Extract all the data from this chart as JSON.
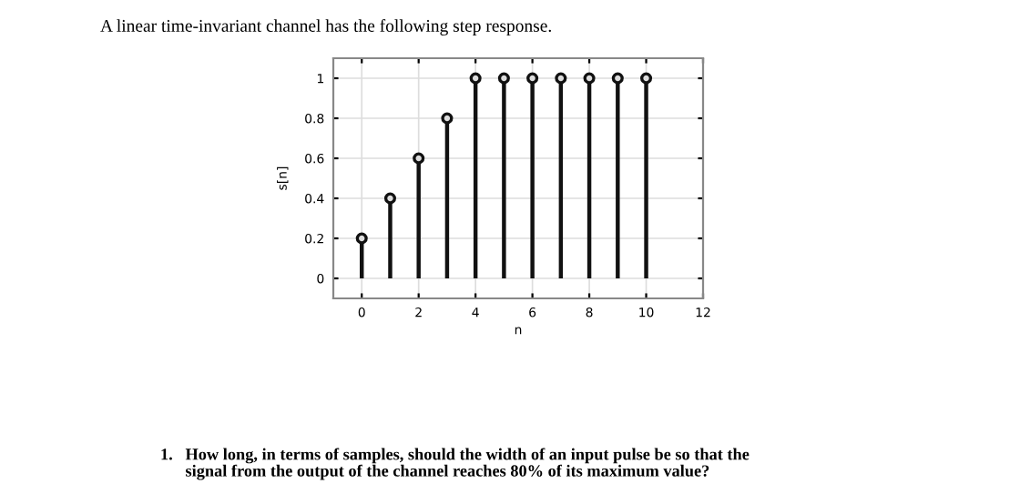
{
  "chart_data": {
    "type": "lollipop",
    "title": "A linear time-invariant channel has the following step response.",
    "x": [
      0,
      1,
      2,
      3,
      4,
      5,
      6,
      7,
      8,
      9,
      10
    ],
    "values": [
      0.2,
      0.4,
      0.6,
      0.8,
      1,
      1,
      1,
      1,
      1,
      1,
      1
    ],
    "color": "#111111",
    "marker": "circle",
    "xlabel": "n",
    "ylabel": "s[n]",
    "xlim": [
      -1,
      12
    ],
    "xticks": [
      0,
      2,
      4,
      6,
      8,
      10,
      12
    ],
    "ylim": [
      -0.1,
      1.1
    ],
    "yticks": [
      0,
      0.2,
      0.4,
      0.6,
      0.8,
      1
    ],
    "grid": true,
    "annotations": [
      "1.   How long, in terms of samples, should the width of an input pulse be so that the\n      signal from the output of the channel reaches 80% of its maximum value?"
    ]
  }
}
